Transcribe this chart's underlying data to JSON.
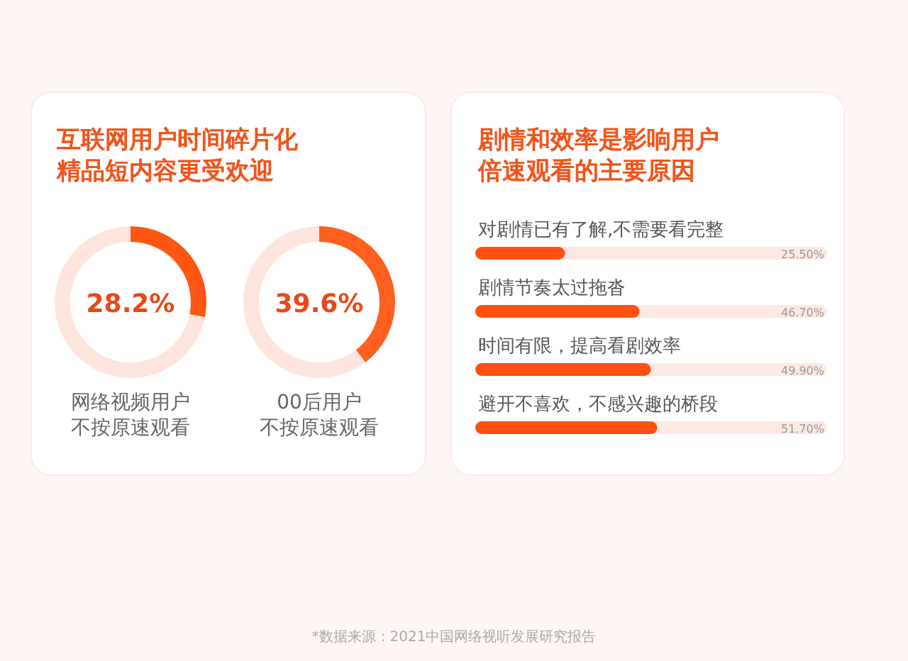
{
  "chart_data": [
    {
      "type": "other",
      "title": "互联网用户时间碎片化精品短内容更受欢迎"
    },
    {
      "type": "donut",
      "title": "网络视频用户不按原速观看",
      "categories": [
        null,
        null
      ],
      "values": [
        28.2,
        71.8
      ],
      "colors": [
        "#ff5614",
        "#fde5dd"
      ],
      "annotations": [
        "28.2%"
      ]
    },
    {
      "type": "donut",
      "title": "00后用户不按原速观看",
      "categories": [
        null,
        null
      ],
      "values": [
        39.6,
        60.4
      ],
      "colors": [
        "#ff5f1f",
        "#fde5dd"
      ],
      "annotations": [
        "39.6%"
      ]
    },
    {
      "type": "bar",
      "orientation": "horizontal",
      "title": "剧情和效率是影响用户倍速观看的主要原因",
      "categories": [
        "对剧情已有了解,不需要看完整",
        "剧情节奏太过拖沓",
        "时间有限，提高看剧效率",
        "避开不喜欢，不感兴趣的桥段"
      ],
      "values": [
        25.5,
        46.7,
        49.9,
        51.7
      ],
      "color": "#ff5012",
      "xlim": [
        0,
        100
      ],
      "value_labels": [
        "25.50%",
        "46.70%",
        "49.90%",
        "51.70%"
      ],
      "annotations": [
        "*数据来源：2021中国网络视听发展研究报告"
      ]
    }
  ]
}
